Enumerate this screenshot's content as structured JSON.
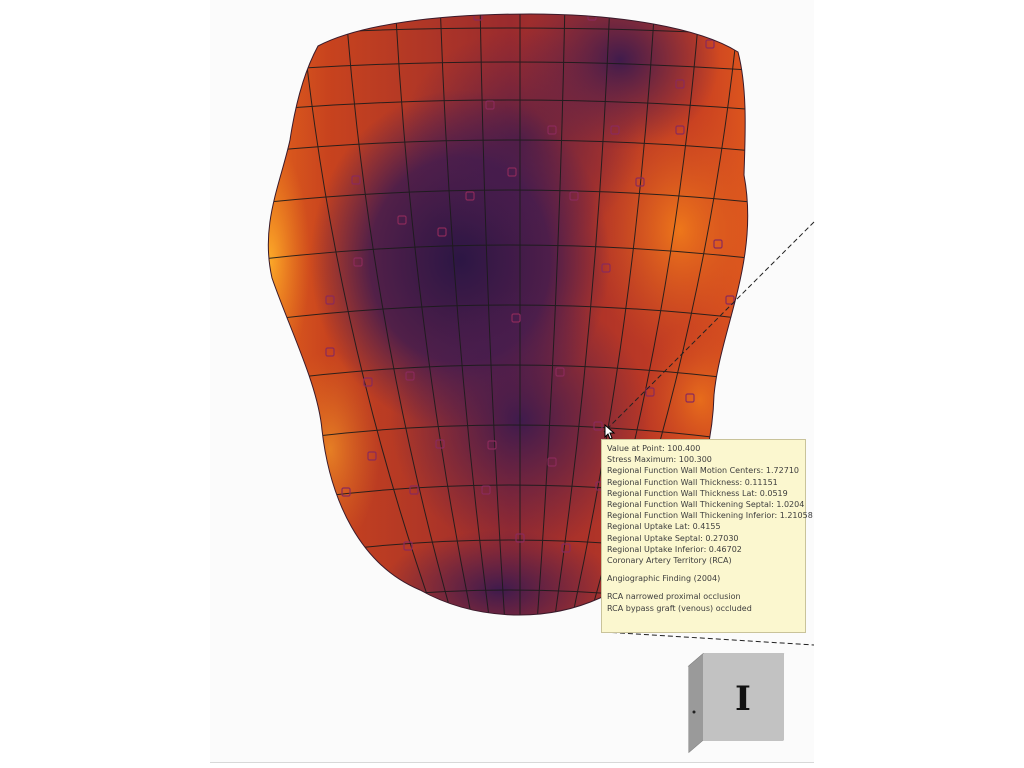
{
  "viewer": {
    "background_color": "#fbfbfb",
    "surface_colors": {
      "high": "#f08a1e",
      "mid": "#c2421e",
      "low": "#4a1e52",
      "lowest": "#2c1644"
    },
    "mesh_line_color": "#1b1b1b",
    "marker_icon": "square-marker-icon"
  },
  "tooltip": {
    "lines": [
      "Value at Point: 100.400",
      "Stress Maximum: 100.300",
      "Regional Function Wall Motion Centers: 1.72710",
      "Regional Function Wall Thickness: 0.11151",
      "Regional Function Wall Thickness Lat: 0.0519",
      "Regional Function Wall Thickening Septal: 1.0204",
      "Regional Function Wall Thickening Inferior: 1.21058",
      "Regional Uptake Lat: 0.4155",
      "Regional Uptake Septal: 0.27030",
      "Regional Uptake Inferior: 0.46702",
      "Coronary Artery Territory (RCA)"
    ],
    "section2": "Angiographic Finding (2004)",
    "section3": [
      "RCA narrowed proximal occlusion",
      "RCA bypass graft (venous) occluded"
    ]
  },
  "orientation_cube": {
    "label": "I",
    "icon": "orientation-cube-icon"
  },
  "cursor": {
    "icon": "arrow-cursor-icon"
  }
}
